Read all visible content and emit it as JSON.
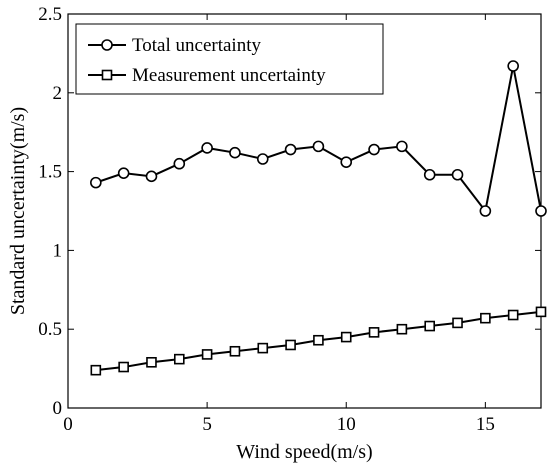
{
  "chart_data": {
    "type": "line",
    "title": "",
    "xlabel": "Wind speed(m/s)",
    "ylabel": "Standard uncertainty(m/s)",
    "xlim": [
      0,
      17
    ],
    "ylim": [
      0,
      2.5
    ],
    "xticks": [
      0,
      5,
      10,
      15
    ],
    "yticks": [
      0,
      0.5,
      1,
      1.5,
      2,
      2.5
    ],
    "xtick_labels": [
      "0",
      "5",
      "10",
      "15"
    ],
    "ytick_labels": [
      "0",
      "0.5",
      "1",
      "1.5",
      "2",
      "2.5"
    ],
    "grid": false,
    "legend_position": "top-left",
    "x": [
      1,
      2,
      3,
      4,
      5,
      6,
      7,
      8,
      9,
      10,
      11,
      12,
      13,
      14,
      15,
      16,
      17
    ],
    "series": [
      {
        "name": "Total uncertainty",
        "marker": "circle",
        "color": "#000000",
        "values": [
          1.43,
          1.49,
          1.47,
          1.55,
          1.65,
          1.62,
          1.58,
          1.64,
          1.66,
          1.56,
          1.64,
          1.66,
          1.48,
          1.48,
          1.25,
          2.17,
          1.25
        ]
      },
      {
        "name": "Measurement uncertainty",
        "marker": "square",
        "color": "#000000",
        "values": [
          0.24,
          0.26,
          0.29,
          0.31,
          0.34,
          0.36,
          0.38,
          0.4,
          0.43,
          0.45,
          0.48,
          0.5,
          0.52,
          0.54,
          0.57,
          0.59,
          0.61
        ]
      }
    ]
  }
}
